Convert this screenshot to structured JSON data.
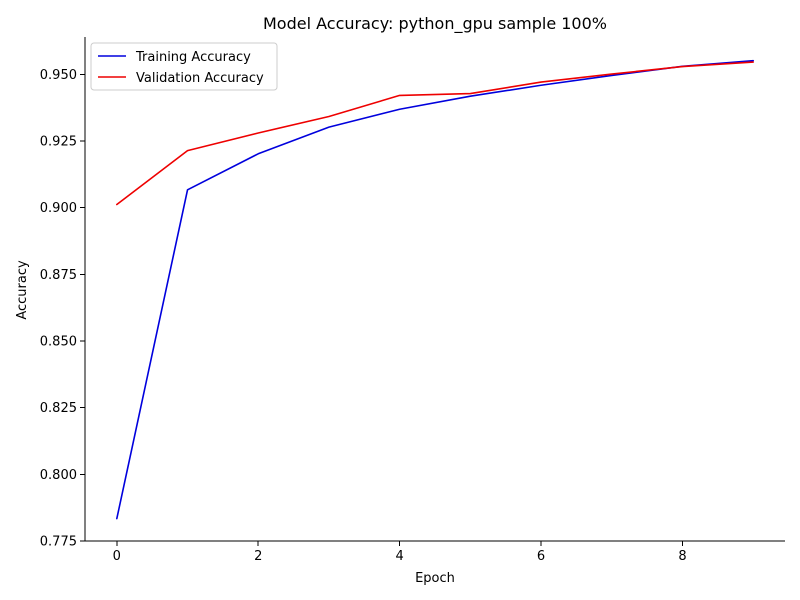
{
  "chart_data": {
    "type": "line",
    "title": "Model Accuracy: python_gpu sample 100%",
    "xlabel": "Epoch",
    "ylabel": "Accuracy",
    "x": [
      0,
      1,
      2,
      3,
      4,
      5,
      6,
      7,
      8,
      9
    ],
    "xlim": [
      -0.45,
      9.45
    ],
    "ylim": [
      0.775,
      0.964
    ],
    "xticks": [
      0,
      2,
      4,
      6,
      8
    ],
    "yticks": [
      0.775,
      0.8,
      0.825,
      0.85,
      0.875,
      0.9,
      0.925,
      0.95
    ],
    "xtick_labels": [
      "0",
      "2",
      "4",
      "6",
      "8"
    ],
    "ytick_labels": [
      "0.775",
      "0.800",
      "0.825",
      "0.850",
      "0.875",
      "0.900",
      "0.925",
      "0.950"
    ],
    "grid": false,
    "legend_position": "top-left",
    "series": [
      {
        "name": "Training Accuracy",
        "color": "#0000dd",
        "values": [
          0.7834,
          0.9067,
          0.9202,
          0.9302,
          0.9369,
          0.9418,
          0.9459,
          0.9496,
          0.953,
          0.9551
        ]
      },
      {
        "name": "Validation Accuracy",
        "color": "#ee0000",
        "values": [
          0.9012,
          0.9214,
          0.928,
          0.9342,
          0.9421,
          0.9428,
          0.9471,
          0.9501,
          0.9529,
          0.9546
        ]
      }
    ]
  }
}
